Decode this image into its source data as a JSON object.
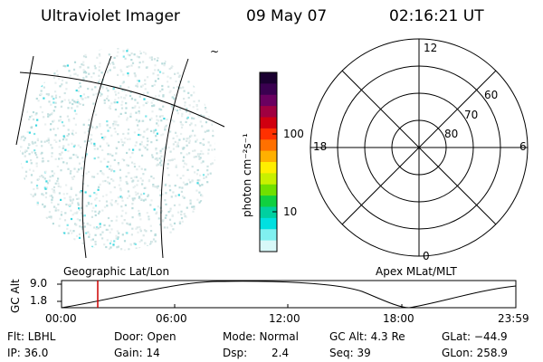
{
  "header": {
    "instrument": "Ultraviolet Imager",
    "date": "09 May 07",
    "time": "02:16:21 UT"
  },
  "image_panel": {
    "grid_label": "Geographic Lat/Lon",
    "tilde": "~"
  },
  "colorbar": {
    "unit_label": "photon cm⁻²s⁻¹",
    "ticks": [
      "100",
      "10"
    ],
    "colors": [
      "#1a0030",
      "#3a0050",
      "#6a0060",
      "#a00040",
      "#d00010",
      "#ff3000",
      "#ff7000",
      "#ffb000",
      "#ffee00",
      "#c8f000",
      "#70e000",
      "#10d040",
      "#00d0a0",
      "#00e0e0",
      "#80f0f0",
      "#d8f8f8"
    ]
  },
  "polar_plot": {
    "grid_label": "Apex MLat/MLT",
    "mlt_labels": {
      "top": "12",
      "bottom": "0",
      "left": "18",
      "right": "6"
    },
    "mlat_labels": [
      "60",
      "70",
      "80"
    ]
  },
  "altitude_plot": {
    "ylabel": "GC Alt",
    "y_ticks": [
      "9.0",
      "1.8"
    ],
    "x_ticks": [
      "00:00",
      "06:00",
      "12:00",
      "18:00",
      "23:59"
    ],
    "marker_color": "#cc0000"
  },
  "footer": {
    "flt": "Flt: LBHL",
    "door": "Door: Open",
    "mode": "Mode: Normal",
    "gc_alt": "GC Alt: 4.3 Re",
    "glat": "GLat: −44.9",
    "ip": "IP: 36.0",
    "gain": "Gain: 14",
    "dsp_label": "Dsp:",
    "dsp_value": "2.4",
    "seq": "Seq: 39",
    "glon": "GLon: 258.9"
  }
}
